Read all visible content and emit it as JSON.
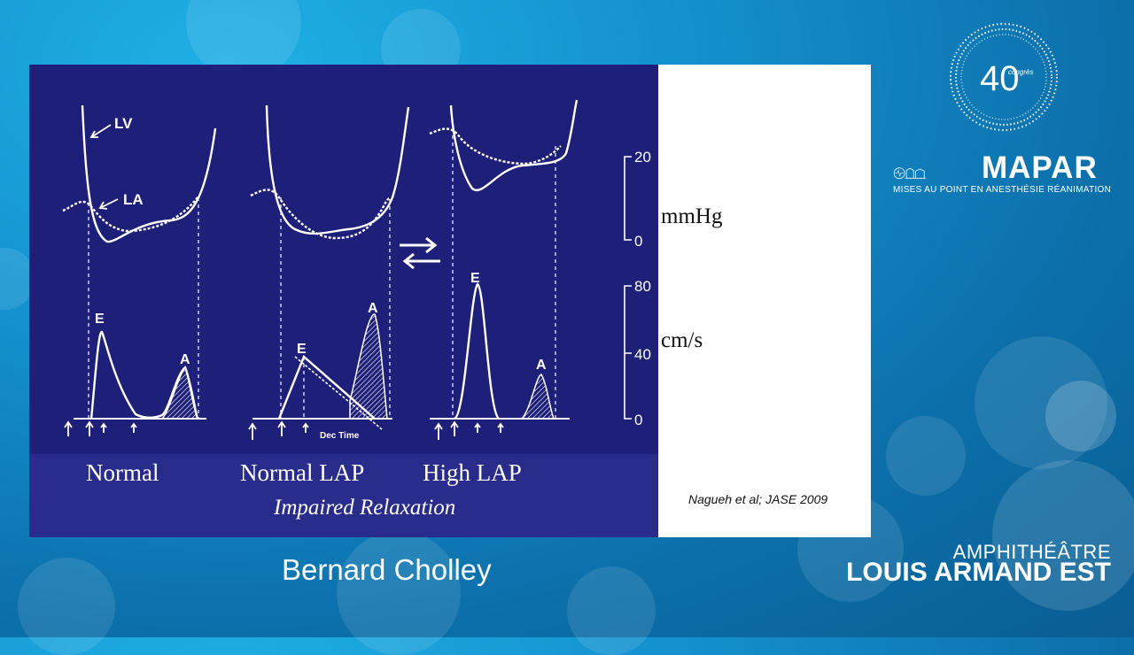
{
  "slide": {
    "conditions": [
      "Normal",
      "Normal LAP",
      "High LAP"
    ],
    "subcaption": "Impaired Relaxation",
    "curve_labels": {
      "lv": "LV",
      "la": "LA",
      "e": "E",
      "a": "A",
      "dec_time": "Dec Time"
    },
    "units": {
      "pressure": "mmHg",
      "velocity": "cm/s"
    },
    "pressure_ticks": [
      "20",
      "0"
    ],
    "velocity_ticks": [
      "80",
      "40",
      "0"
    ],
    "citation": "Nagueh et al; JASE 2009"
  },
  "speaker": {
    "name": "Bernard Cholley"
  },
  "room": {
    "line1": "AMPHITHÉÂTRE",
    "line2": "LOUIS ARMAND EST"
  },
  "branding": {
    "badge_number": "40",
    "badge_word": "congrès",
    "name": "MAPAR",
    "tagline": "MISES AU POINT EN ANESTHÉSIE RÉANIMATION"
  }
}
